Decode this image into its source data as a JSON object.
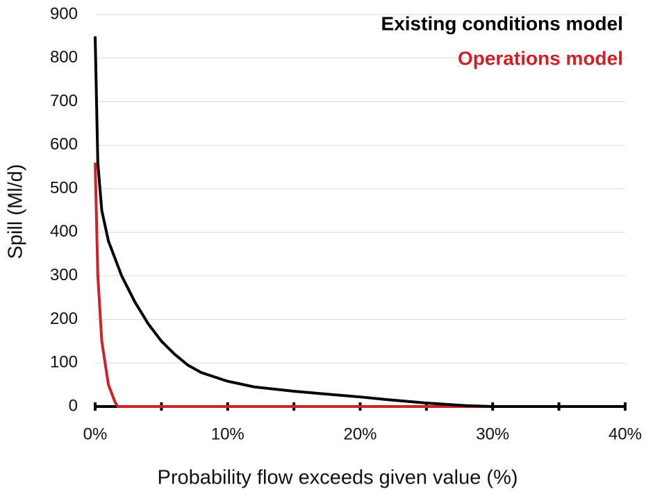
{
  "chart_data": {
    "type": "line",
    "x_label": "Probability flow exceeds given value (%)",
    "y_label": "Spill (Ml/d)",
    "xlim": [
      0,
      40
    ],
    "ylim": [
      0,
      900
    ],
    "xticks": [
      {
        "value": 0,
        "label": "0%"
      },
      {
        "value": 10,
        "label": "10%"
      },
      {
        "value": 20,
        "label": "20%"
      },
      {
        "value": 30,
        "label": "30%"
      },
      {
        "value": 40,
        "label": "40%"
      }
    ],
    "x_minor_ticks": [
      5,
      15,
      25,
      35
    ],
    "yticks": [
      0,
      100,
      200,
      300,
      400,
      500,
      600,
      700,
      800,
      900
    ],
    "grid": true,
    "legend": "top-right",
    "series": [
      {
        "name": "Existing conditions model",
        "color": "#000000",
        "x": [
          0,
          0.2,
          0.5,
          1,
          2,
          3,
          4,
          5,
          6,
          7,
          8,
          10,
          12,
          15,
          18,
          20,
          22,
          25,
          28,
          30,
          40
        ],
        "values": [
          850,
          560,
          450,
          380,
          300,
          240,
          190,
          150,
          120,
          95,
          78,
          58,
          45,
          35,
          27,
          22,
          16,
          8,
          2,
          0,
          0
        ]
      },
      {
        "name": "Operations model",
        "color": "#cc2229",
        "x": [
          0,
          0.2,
          0.5,
          1,
          1.5,
          1.7,
          40
        ],
        "values": [
          560,
          300,
          150,
          50,
          10,
          0,
          0
        ]
      }
    ]
  }
}
